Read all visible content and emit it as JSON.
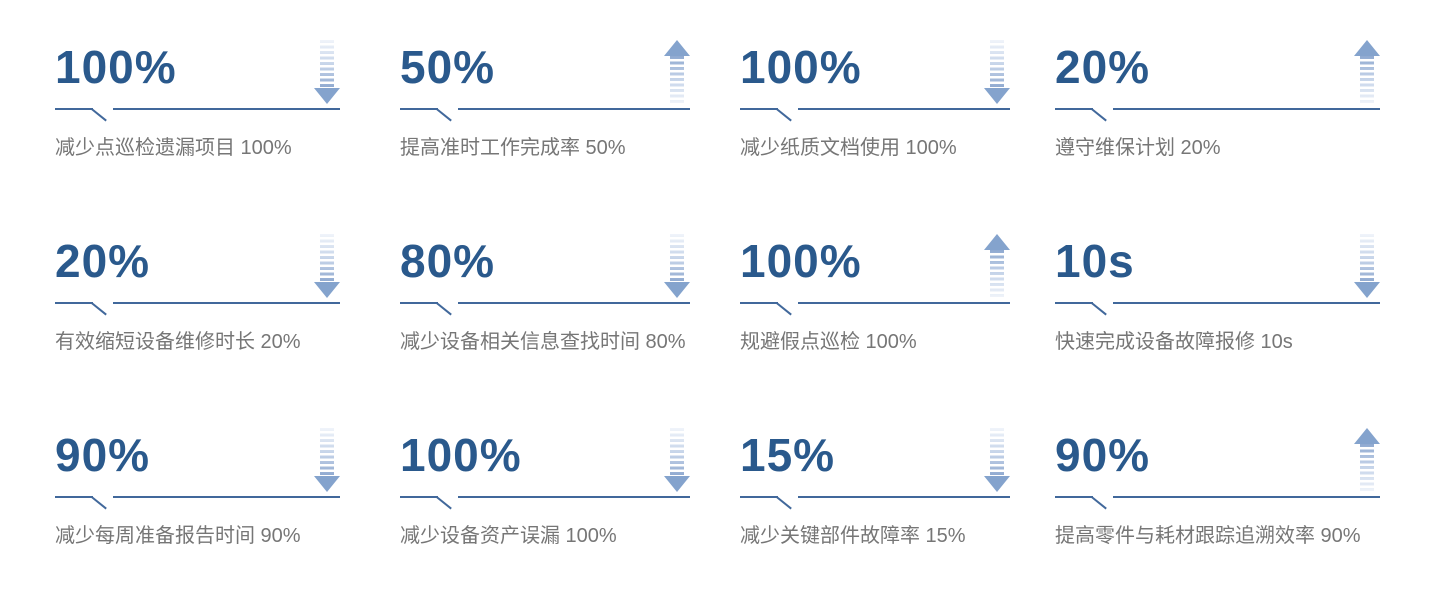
{
  "colors": {
    "value_blue": "#2a598c",
    "line_blue": "#41689b",
    "desc_gray": "#767676",
    "arrow_solid": "#84a3cd",
    "arrow_fade_light": "#f0f4fa",
    "arrow_fade_dark": "#8fa9d0"
  },
  "cards": [
    {
      "value": "100%",
      "direction": "down",
      "description": "减少点巡检遗漏项目 100%"
    },
    {
      "value": "50%",
      "direction": "up",
      "description": "提高准时工作完成率 50%"
    },
    {
      "value": "100%",
      "direction": "down",
      "description": "减少纸质文档使用 100%"
    },
    {
      "value": "20%",
      "direction": "up",
      "description": "遵守维保计划 20%"
    },
    {
      "value": "20%",
      "direction": "down",
      "description": "有效缩短设备维修时长 20%"
    },
    {
      "value": "80%",
      "direction": "down",
      "description": "减少设备相关信息查找时间 80%"
    },
    {
      "value": "100%",
      "direction": "up",
      "description": "规避假点巡检 100%"
    },
    {
      "value": "10s",
      "direction": "down",
      "description": "快速完成设备故障报修 10s"
    },
    {
      "value": "90%",
      "direction": "down",
      "description": "减少每周准备报告时间 90%"
    },
    {
      "value": "100%",
      "direction": "down",
      "description": "减少设备资产误漏 100%"
    },
    {
      "value": "15%",
      "direction": "down",
      "description": "减少关键部件故障率 15%"
    },
    {
      "value": "90%",
      "direction": "up",
      "description": "提高零件与耗材跟踪追溯效率 90%"
    }
  ],
  "chart_data": {
    "type": "table",
    "title": "",
    "categories": [
      "减少点巡检遗漏项目",
      "提高准时工作完成率",
      "减少纸质文档使用",
      "遵守维保计划",
      "有效缩短设备维修时长",
      "减少设备相关信息查找时间",
      "规避假点巡检",
      "快速完成设备故障报修",
      "减少每周准备报告时间",
      "减少设备资产误漏",
      "减少关键部件故障率",
      "提高零件与耗材跟踪追溯效率"
    ],
    "series": [
      {
        "name": "value",
        "values": [
          "100%",
          "50%",
          "100%",
          "20%",
          "20%",
          "80%",
          "100%",
          "10s",
          "90%",
          "100%",
          "15%",
          "90%"
        ]
      },
      {
        "name": "trend",
        "values": [
          "down",
          "up",
          "down",
          "up",
          "down",
          "down",
          "up",
          "down",
          "down",
          "down",
          "down",
          "up"
        ]
      }
    ],
    "layout": "4-column by 3-row grid of stat cards"
  }
}
